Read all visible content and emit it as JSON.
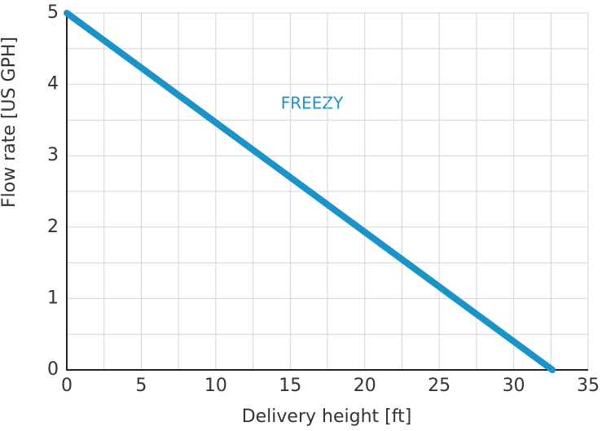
{
  "chart_data": {
    "type": "line",
    "x_label": "Delivery height [ft]",
    "y_label": "Flow rate [US GPH]",
    "annotation": "FREEZY",
    "x": [
      0,
      32.6
    ],
    "series": [
      {
        "name": "FREEZY",
        "color": "#1a93c8",
        "values": [
          5,
          0
        ]
      }
    ],
    "xlim": [
      0,
      35
    ],
    "ylim": [
      0,
      5
    ],
    "xticks": [
      0,
      5,
      10,
      15,
      20,
      25,
      30,
      35
    ],
    "yticks": [
      0,
      1,
      2,
      3,
      4,
      5
    ],
    "x_minor_ticks": [
      2.5,
      7.5,
      12.5,
      17.5,
      22.5,
      27.5,
      32.5
    ],
    "y_minor_ticks": [
      0.5,
      1.5,
      2.5,
      3.5,
      4.5
    ],
    "grid": true
  }
}
